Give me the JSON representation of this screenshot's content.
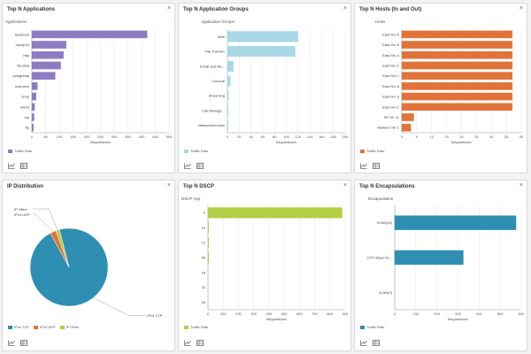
{
  "colors": {
    "purple": "#8e7cc3",
    "lightblue": "#a9d7e6",
    "orange": "#e1733a",
    "olive": "#b5cc45",
    "teal": "#2f8fb3",
    "gray": "#aaaaaa"
  },
  "panels": [
    {
      "id": "top-n-applications",
      "title": "Top N Applications",
      "legend": [
        "Traffic Rate"
      ],
      "chart_data": {
        "type": "bar",
        "orientation": "horizontal",
        "color": "purple",
        "title": "Top N Applications",
        "category_label": "Applications",
        "categories": [
          "facebook",
          "mysql-ftr",
          "http",
          "ftp-data",
          "postgresql",
          "unknown",
          "smtp",
          "telnet",
          "ntp",
          "ftp"
        ],
        "values": [
          420,
          125,
          115,
          105,
          85,
          20,
          15,
          10,
          8,
          6
        ],
        "xlabel": "Megabits/sec",
        "xticks": [
          0,
          50,
          100,
          150,
          200,
          250,
          300,
          350,
          400,
          450,
          500
        ],
        "xlim": [
          0,
          500
        ]
      }
    },
    {
      "id": "top-n-application-groups",
      "title": "Top N Application Groups",
      "legend": [
        "Traffic Rate"
      ],
      "chart_data": {
        "type": "bar",
        "orientation": "horizontal",
        "color": "lightblue",
        "title": "Top N Application Groups",
        "category_label": "Application Groups",
        "categories": [
          "Web",
          "File-Transfer",
          "Email and Me...",
          "Console",
          "Streaming",
          "Call Manage...",
          "NetworkServices"
        ],
        "values": [
          120,
          115,
          10,
          5,
          2,
          1,
          1
        ],
        "xlabel": "Megabits/sec",
        "xticks": [
          0,
          20,
          40,
          60,
          80,
          100,
          120,
          140,
          160,
          180,
          200
        ],
        "xlim": [
          0,
          200
        ]
      }
    },
    {
      "id": "top-n-hosts",
      "title": "Top N Hosts (In and Out)",
      "legend": [
        "Traffic Rate"
      ],
      "chart_data": {
        "type": "bar",
        "orientation": "horizontal",
        "color": "orange",
        "title": "Top N Hosts (In and Out)",
        "category_label": "Hosts",
        "categories": [
          "East-Srv-5",
          "East-Srv-6",
          "East-Srv-4",
          "East-Srv-2",
          "East-Srv-7",
          "East-Srv-8",
          "East-Srv-3",
          "East-Srv-1",
          "SP-SF-11",
          "Market-Cntr-1"
        ],
        "values": [
          37,
          37,
          37,
          37,
          37,
          37,
          37,
          37,
          4,
          3
        ],
        "xlabel": "Megabits/sec",
        "xticks": [
          0,
          5,
          10,
          15,
          20,
          25,
          30,
          35,
          40
        ],
        "xlim": [
          0,
          40
        ]
      }
    },
    {
      "id": "ip-distribution",
      "title": "IP Distribution",
      "legend": [
        "IPv4 TCP",
        "IPv4 UDP",
        "IP Other"
      ],
      "chart_data": {
        "type": "pie",
        "title": "IP Distribution",
        "labels": [
          "IPv4 TCP",
          "IPv4 UDP",
          "IP Other"
        ],
        "values": [
          96,
          2.5,
          1.5
        ],
        "colors": [
          "teal",
          "orange",
          "olive"
        ]
      }
    },
    {
      "id": "top-n-dscp",
      "title": "Top N DSCP",
      "legend": [
        "Traffic Rate"
      ],
      "chart_data": {
        "type": "bar",
        "orientation": "horizontal",
        "color": "olive",
        "title": "Top N DSCP",
        "category_label": "DSCP App",
        "categories": [
          "0",
          "10",
          "12",
          "46",
          "18",
          "32",
          "34"
        ],
        "values": [
          880,
          2,
          1,
          1,
          0,
          0,
          0
        ],
        "xlabel": "Megabits/sec",
        "xticks": [
          0,
          100,
          200,
          300,
          400,
          500,
          600,
          700,
          800,
          900
        ],
        "xlim": [
          0,
          900
        ]
      }
    },
    {
      "id": "top-n-encapsulations",
      "title": "Top N Encapsulations",
      "legend": [
        "Traffic Rate"
      ],
      "chart_data": {
        "type": "bar",
        "orientation": "horizontal",
        "color": "teal",
        "title": "Top N Encapsulations",
        "category_label": "Encapsulation",
        "categories": [
          "VLAN(10)",
          "OTV 4(bps:01...",
          "VLAN(3)"
        ],
        "values": [
          575,
          325,
          0
        ],
        "xlabel": "Megabits/sec",
        "xticks": [
          0,
          100,
          200,
          300,
          400,
          500,
          600
        ],
        "xlim": [
          0,
          600
        ]
      }
    }
  ],
  "toolbar": {
    "chart_icon": "line-chart-icon",
    "table_icon": "grid-table-icon"
  }
}
